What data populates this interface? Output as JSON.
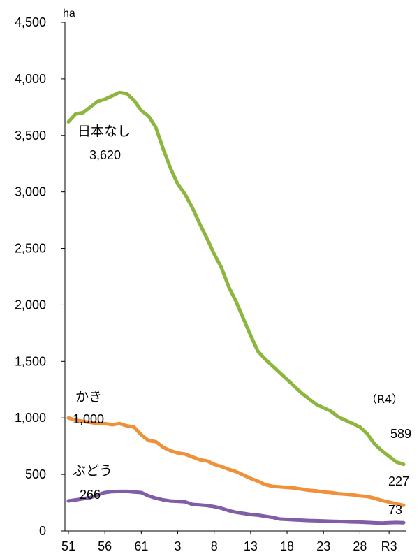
{
  "chart_data": {
    "type": "line",
    "y_unit": "ha",
    "ylim": [
      0,
      4500
    ],
    "y_ticks": [
      0,
      500,
      1000,
      1500,
      2000,
      2500,
      3000,
      3500,
      4000,
      4500
    ],
    "y_tick_labels": [
      "0",
      "500",
      "1,000",
      "1,500",
      "2,000",
      "2,500",
      "3,000",
      "3,500",
      "4,000",
      "4,500"
    ],
    "x_count": 47,
    "x_ticks": [
      {
        "index": 0,
        "label": "51"
      },
      {
        "index": 5,
        "label": "56"
      },
      {
        "index": 10,
        "label": "61"
      },
      {
        "index": 15,
        "label": "3"
      },
      {
        "index": 20,
        "label": "8"
      },
      {
        "index": 25,
        "label": "13"
      },
      {
        "index": 30,
        "label": "18"
      },
      {
        "index": 35,
        "label": "23"
      },
      {
        "index": 40,
        "label": "28"
      },
      {
        "index": 44,
        "label": "R3"
      }
    ],
    "grid": false,
    "series": [
      {
        "name": "日本なし",
        "color": "#8db63f",
        "start_label": "3,620",
        "end_label": "589",
        "values": [
          3620,
          3690,
          3700,
          3750,
          3800,
          3820,
          3850,
          3880,
          3870,
          3810,
          3720,
          3670,
          3570,
          3380,
          3210,
          3070,
          2980,
          2860,
          2720,
          2590,
          2450,
          2330,
          2160,
          2030,
          1880,
          1730,
          1590,
          1520,
          1460,
          1400,
          1340,
          1280,
          1220,
          1170,
          1120,
          1090,
          1060,
          1010,
          980,
          950,
          920,
          860,
          770,
          710,
          660,
          610,
          589
        ]
      },
      {
        "name": "かき",
        "color": "#f0913a",
        "start_label": "1,000",
        "end_label": "227",
        "values": [
          1000,
          980,
          970,
          960,
          950,
          950,
          940,
          950,
          930,
          920,
          850,
          800,
          790,
          740,
          710,
          690,
          680,
          655,
          630,
          620,
          590,
          570,
          545,
          525,
          495,
          465,
          440,
          410,
          395,
          390,
          385,
          380,
          370,
          360,
          355,
          345,
          340,
          330,
          325,
          320,
          310,
          305,
          290,
          270,
          255,
          240,
          227
        ]
      },
      {
        "name": "ぶどう",
        "color": "#7f5ea6",
        "start_label": "266",
        "end_label": "73",
        "values": [
          266,
          275,
          285,
          295,
          320,
          340,
          348,
          350,
          350,
          345,
          340,
          310,
          290,
          275,
          265,
          262,
          258,
          235,
          230,
          225,
          215,
          200,
          180,
          165,
          155,
          145,
          140,
          130,
          120,
          105,
          102,
          98,
          95,
          92,
          90,
          88,
          86,
          84,
          82,
          80,
          78,
          75,
          72,
          70,
          73,
          75,
          73
        ]
      }
    ],
    "annotations": [
      {
        "text": "（R4）"
      }
    ]
  }
}
